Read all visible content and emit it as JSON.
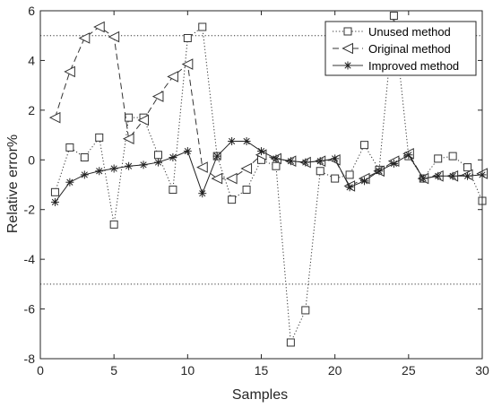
{
  "chart_data": {
    "type": "line",
    "title": "",
    "xlabel": "Samples",
    "ylabel": "Relative error%",
    "xlim": [
      0,
      30
    ],
    "ylim": [
      -8,
      6
    ],
    "xticks": [
      0,
      5,
      10,
      15,
      20,
      25,
      30
    ],
    "yticks": [
      -8,
      -6,
      -4,
      -2,
      0,
      2,
      4,
      6
    ],
    "grid": false,
    "legend_position": "top-right",
    "reference_lines": [
      {
        "y": 5,
        "style": "dotted"
      },
      {
        "y": -5,
        "style": "dotted"
      }
    ],
    "series": [
      {
        "name": "Unused method",
        "line_style": "dotted",
        "marker": "square",
        "x": [
          1,
          2,
          3,
          4,
          5,
          6,
          7,
          8,
          9,
          10,
          11,
          12,
          13,
          14,
          15,
          16,
          17,
          18,
          19,
          20,
          21,
          22,
          23,
          24,
          25,
          26,
          27,
          28,
          29,
          30
        ],
        "y": [
          -1.3,
          0.5,
          0.1,
          0.9,
          -2.6,
          1.7,
          1.7,
          0.2,
          -1.2,
          4.9,
          5.35,
          0.15,
          -1.6,
          -1.2,
          0.0,
          -0.25,
          -7.35,
          -6.05,
          -0.45,
          -0.75,
          -0.6,
          0.6,
          -0.4,
          5.8,
          0.15,
          -0.75,
          0.05,
          0.15,
          -0.3,
          -1.65
        ]
      },
      {
        "name": "Original method",
        "line_style": "dashed",
        "marker": "left-triangle",
        "x": [
          1,
          2,
          3,
          4,
          5,
          6,
          7,
          8,
          9,
          10,
          11,
          12,
          13,
          14,
          15,
          16,
          17,
          18,
          19,
          20,
          21,
          22,
          23,
          24,
          25,
          26,
          27,
          28,
          29,
          30
        ],
        "y": [
          1.7,
          3.55,
          4.9,
          5.35,
          4.95,
          0.85,
          1.6,
          2.55,
          3.35,
          3.85,
          -0.3,
          -0.75,
          -0.75,
          -0.35,
          0.2,
          0.05,
          -0.05,
          -0.1,
          -0.05,
          0.0,
          -1.05,
          -0.75,
          -0.45,
          -0.05,
          0.25,
          -0.75,
          -0.65,
          -0.65,
          -0.6,
          -0.55
        ]
      },
      {
        "name": "Improved method",
        "line_style": "solid",
        "marker": "asterisk",
        "x": [
          1,
          2,
          3,
          4,
          5,
          6,
          7,
          8,
          9,
          10,
          11,
          12,
          13,
          14,
          15,
          16,
          17,
          18,
          19,
          20,
          21,
          22,
          23,
          24,
          25,
          26,
          27,
          28,
          29,
          30
        ],
        "y": [
          -1.7,
          -0.9,
          -0.6,
          -0.45,
          -0.35,
          -0.25,
          -0.2,
          -0.1,
          0.1,
          0.35,
          -1.35,
          0.15,
          0.75,
          0.75,
          0.35,
          0.05,
          -0.05,
          -0.1,
          -0.05,
          0.05,
          -1.1,
          -0.85,
          -0.45,
          -0.15,
          0.2,
          -0.75,
          -0.65,
          -0.65,
          -0.65,
          -0.6
        ]
      }
    ]
  }
}
